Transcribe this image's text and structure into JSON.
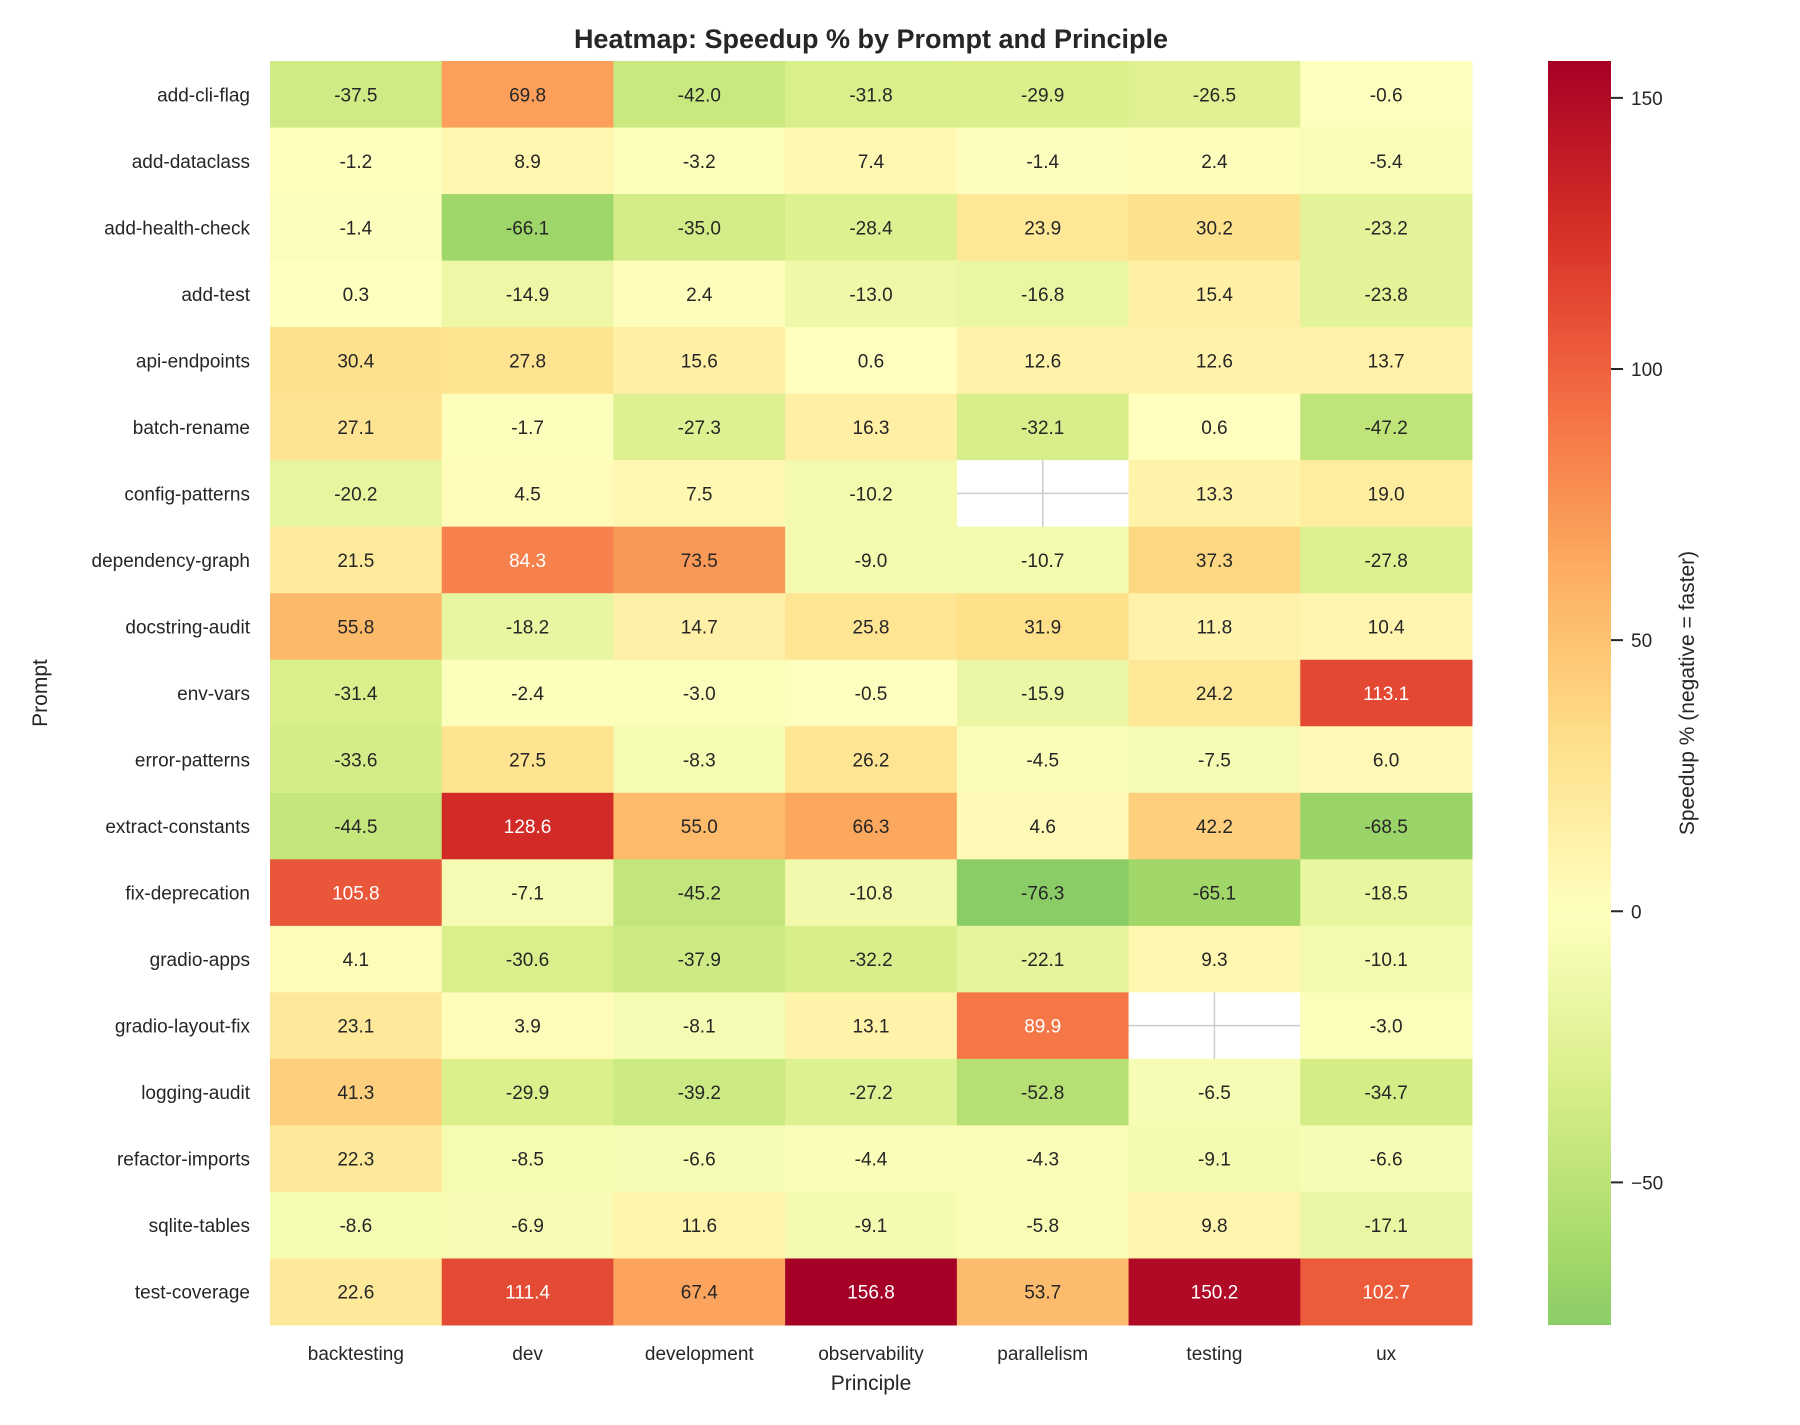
{
  "chart_data": {
    "type": "heatmap",
    "title": "Heatmap: Speedup % by Prompt and Principle",
    "xlabel": "Principle",
    "ylabel": "Prompt",
    "colorbar_label": "Speedup % (negative = faster)",
    "colormap": "RdYlGn_r",
    "center": 0,
    "vmin": -76.3,
    "vmax": 156.8,
    "colorbar_ticks": [
      150,
      100,
      50,
      0,
      -50
    ],
    "colorbar_tick_labels": [
      "150",
      "100",
      "50",
      "0",
      "−50"
    ],
    "x_categories": [
      "backtesting",
      "dev",
      "development",
      "observability",
      "parallelism",
      "testing",
      "ux"
    ],
    "y_categories": [
      "add-cli-flag",
      "add-dataclass",
      "add-health-check",
      "add-test",
      "api-endpoints",
      "batch-rename",
      "config-patterns",
      "dependency-graph",
      "docstring-audit",
      "env-vars",
      "error-patterns",
      "extract-constants",
      "fix-deprecation",
      "gradio-apps",
      "gradio-layout-fix",
      "logging-audit",
      "refactor-imports",
      "sqlite-tables",
      "test-coverage"
    ],
    "values": [
      [
        -37.5,
        69.8,
        -42.0,
        -31.8,
        -29.9,
        -26.5,
        -0.6
      ],
      [
        -1.2,
        8.9,
        -3.2,
        7.4,
        -1.4,
        2.4,
        -5.4
      ],
      [
        -1.4,
        -66.1,
        -35.0,
        -28.4,
        23.9,
        30.2,
        -23.2
      ],
      [
        0.3,
        -14.9,
        2.4,
        -13.0,
        -16.8,
        15.4,
        -23.8
      ],
      [
        30.4,
        27.8,
        15.6,
        0.6,
        12.6,
        12.6,
        13.7
      ],
      [
        27.1,
        -1.7,
        -27.3,
        16.3,
        -32.1,
        0.6,
        -47.2
      ],
      [
        -20.2,
        4.5,
        7.5,
        -10.2,
        null,
        13.3,
        19.0
      ],
      [
        21.5,
        84.3,
        73.5,
        -9.0,
        -10.7,
        37.3,
        -27.8
      ],
      [
        55.8,
        -18.2,
        14.7,
        25.8,
        31.9,
        11.8,
        10.4
      ],
      [
        -31.4,
        -2.4,
        -3.0,
        -0.5,
        -15.9,
        24.2,
        113.1
      ],
      [
        -33.6,
        27.5,
        -8.3,
        26.2,
        -4.5,
        -7.5,
        6.0
      ],
      [
        -44.5,
        128.6,
        55.0,
        66.3,
        4.6,
        42.2,
        -68.5
      ],
      [
        105.8,
        -7.1,
        -45.2,
        -10.8,
        -76.3,
        -65.1,
        -18.5
      ],
      [
        4.1,
        -30.6,
        -37.9,
        -32.2,
        -22.1,
        9.3,
        -10.1
      ],
      [
        23.1,
        3.9,
        -8.1,
        13.1,
        89.9,
        null,
        -3.0
      ],
      [
        41.3,
        -29.9,
        -39.2,
        -27.2,
        -52.8,
        -6.5,
        -34.7
      ],
      [
        22.3,
        -8.5,
        -6.6,
        -4.4,
        -4.3,
        -9.1,
        -6.6
      ],
      [
        -8.6,
        -6.9,
        11.6,
        -9.1,
        -5.8,
        9.8,
        -17.1
      ],
      [
        22.6,
        111.4,
        67.4,
        156.8,
        53.7,
        150.2,
        102.7
      ]
    ],
    "value_format": "0.1f",
    "missing_cells": [
      [
        "config-patterns",
        "parallelism"
      ],
      [
        "gradio-layout-fix",
        "testing"
      ]
    ],
    "grid": false,
    "legend": "colorbar-right"
  }
}
